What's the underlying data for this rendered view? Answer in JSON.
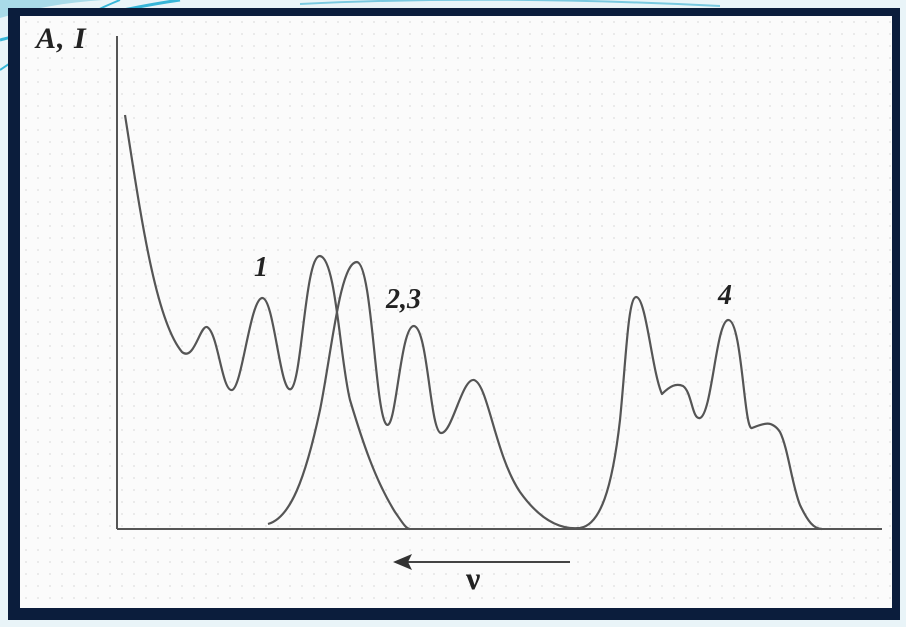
{
  "diagram": {
    "axis_label": "A, I",
    "peak_labels": [
      "1",
      "2,3",
      "4"
    ],
    "arrow_label": "ν",
    "colors": {
      "frame": "#0b1d3c",
      "background": "#fbfbfb",
      "curve": "#555555",
      "decoration": "#38b6d8"
    }
  }
}
